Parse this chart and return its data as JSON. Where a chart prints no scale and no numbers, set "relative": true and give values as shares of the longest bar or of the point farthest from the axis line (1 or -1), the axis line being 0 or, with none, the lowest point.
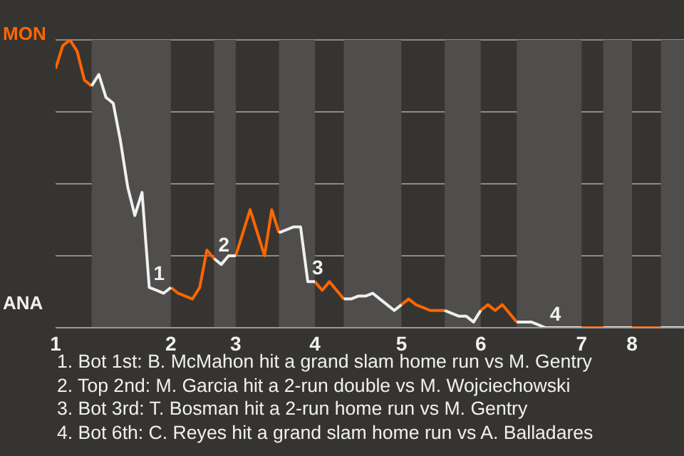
{
  "chart_data": {
    "type": "line",
    "relative": true,
    "categories": [
      "1",
      null,
      null,
      null,
      null,
      null,
      null,
      null,
      null,
      null,
      null,
      null,
      null,
      null,
      null,
      null,
      "2",
      null,
      null,
      null,
      null,
      null,
      null,
      null,
      null,
      "3",
      null,
      null,
      null,
      null,
      null,
      null,
      null,
      null,
      null,
      null,
      "4",
      null,
      null,
      null,
      null,
      null,
      null,
      null,
      null,
      null,
      null,
      null,
      "5",
      null,
      null,
      null,
      null,
      null,
      null,
      null,
      null,
      null,
      null,
      "6",
      null,
      null,
      null,
      null,
      null,
      null,
      null,
      null,
      null,
      null,
      null,
      null,
      null,
      "7",
      null,
      null,
      null,
      null,
      null,
      null,
      "8",
      null,
      null,
      null,
      null,
      null,
      null,
      null,
      null
    ],
    "series": [
      {
        "name": "MON",
        "color": "#ff6600",
        "values": [
          0.9,
          0.98,
          1,
          0.96,
          0.86,
          0.84,
          null,
          null,
          null,
          null,
          null,
          null,
          null,
          null,
          null,
          null,
          0.14,
          0.12,
          0.11,
          0.1,
          0.14,
          0.27,
          0.24,
          null,
          null,
          0.25,
          0.33,
          0.41,
          0.33,
          0.25,
          0.41,
          0.33,
          null,
          null,
          null,
          null,
          0.16,
          0.13,
          0.16,
          0.13,
          0.1,
          null,
          null,
          null,
          null,
          null,
          null,
          null,
          0.08,
          0.1,
          0.08,
          0.07,
          0.06,
          0.06,
          0.06,
          null,
          null,
          null,
          null,
          0.06,
          0.08,
          0.06,
          0.08,
          0.05,
          0.02,
          null,
          null,
          null,
          null,
          null,
          null,
          null,
          null,
          0,
          0,
          0,
          0,
          null,
          null,
          null,
          0,
          0,
          0,
          0,
          0,
          null,
          null,
          null,
          null
        ]
      },
      {
        "name": "ANA",
        "color": "#f0f0f0",
        "values": [
          null,
          null,
          null,
          null,
          null,
          0.84,
          0.88,
          0.8,
          0.78,
          0.65,
          0.49,
          0.39,
          0.47,
          0.14,
          0.13,
          0.12,
          0.14,
          null,
          null,
          null,
          null,
          null,
          0.24,
          0.22,
          0.25,
          0.25,
          null,
          null,
          null,
          null,
          null,
          0.33,
          0.34,
          0.35,
          0.35,
          0.16,
          0.16,
          null,
          null,
          null,
          0.1,
          0.1,
          0.11,
          0.11,
          0.12,
          0.1,
          0.08,
          0.06,
          0.08,
          null,
          null,
          null,
          null,
          null,
          0.06,
          0.05,
          0.04,
          0.04,
          0.02,
          0.06,
          null,
          null,
          null,
          null,
          0.02,
          0.02,
          0.02,
          0.01,
          0,
          0,
          0,
          0,
          0,
          0,
          null,
          null,
          0,
          0,
          0,
          0,
          0,
          null,
          null,
          null,
          0,
          0,
          0,
          0,
          0
        ]
      }
    ],
    "grid": "y",
    "legend": "left",
    "marker": "none",
    "line_style": "solid",
    "annotations": [
      {
        "text": "1",
        "y": 0.14
      },
      {
        "text": "2",
        "y": 0.24
      },
      {
        "text": "3",
        "y": 0.16
      },
      {
        "text": "4",
        "y": 0
      },
      "1. Bot 1st: B. McMahon hit a grand slam home run vs M. Gentry",
      "2. Top 2nd: M. Garcia hit a 2-run double vs M. Wojciechowski",
      "3. Bot 3rd: T. Bosman hit a 2-run home run vs M. Gentry",
      "4. Bot 6th: C. Reyes hit a grand slam home run vs A. Balladares"
    ]
  }
}
